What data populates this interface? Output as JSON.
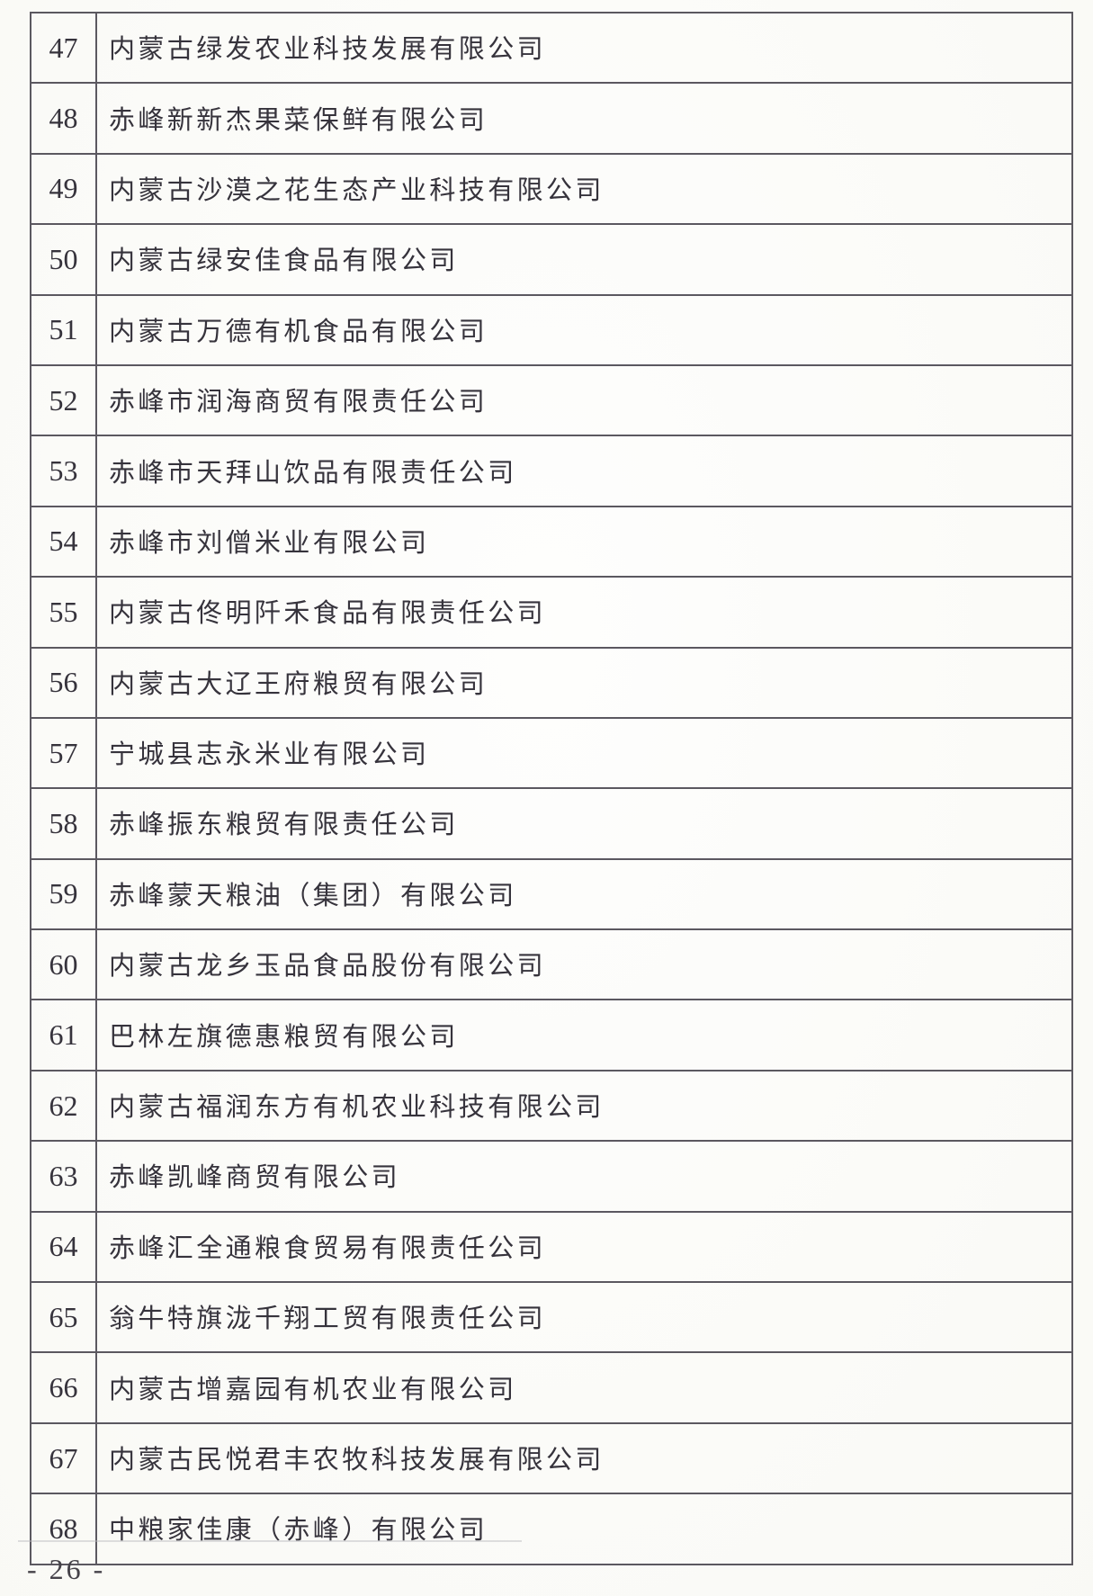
{
  "page": {
    "footer": "- 26 -"
  },
  "table": {
    "rows": [
      {
        "no": "47",
        "name": "内蒙古绿发农业科技发展有限公司"
      },
      {
        "no": "48",
        "name": "赤峰新新杰果菜保鲜有限公司"
      },
      {
        "no": "49",
        "name": "内蒙古沙漠之花生态产业科技有限公司"
      },
      {
        "no": "50",
        "name": "内蒙古绿安佳食品有限公司"
      },
      {
        "no": "51",
        "name": "内蒙古万德有机食品有限公司"
      },
      {
        "no": "52",
        "name": "赤峰市润海商贸有限责任公司"
      },
      {
        "no": "53",
        "name": "赤峰市天拜山饮品有限责任公司"
      },
      {
        "no": "54",
        "name": "赤峰市刘僧米业有限公司"
      },
      {
        "no": "55",
        "name": "内蒙古佟明阡禾食品有限责任公司"
      },
      {
        "no": "56",
        "name": "内蒙古大辽王府粮贸有限公司"
      },
      {
        "no": "57",
        "name": "宁城县志永米业有限公司"
      },
      {
        "no": "58",
        "name": "赤峰振东粮贸有限责任公司"
      },
      {
        "no": "59",
        "name": "赤峰蒙天粮油（集团）有限公司"
      },
      {
        "no": "60",
        "name": "内蒙古龙乡玉品食品股份有限公司"
      },
      {
        "no": "61",
        "name": "巴林左旗德惠粮贸有限公司"
      },
      {
        "no": "62",
        "name": "内蒙古福润东方有机农业科技有限公司"
      },
      {
        "no": "63",
        "name": "赤峰凯峰商贸有限公司"
      },
      {
        "no": "64",
        "name": "赤峰汇全通粮食贸易有限责任公司"
      },
      {
        "no": "65",
        "name": "翁牛特旗泷千翔工贸有限责任公司"
      },
      {
        "no": "66",
        "name": "内蒙古增嘉园有机农业有限公司"
      },
      {
        "no": "67",
        "name": "内蒙古民悦君丰农牧科技发展有限公司"
      },
      {
        "no": "68",
        "name": "中粮家佳康（赤峰）有限公司"
      }
    ]
  }
}
